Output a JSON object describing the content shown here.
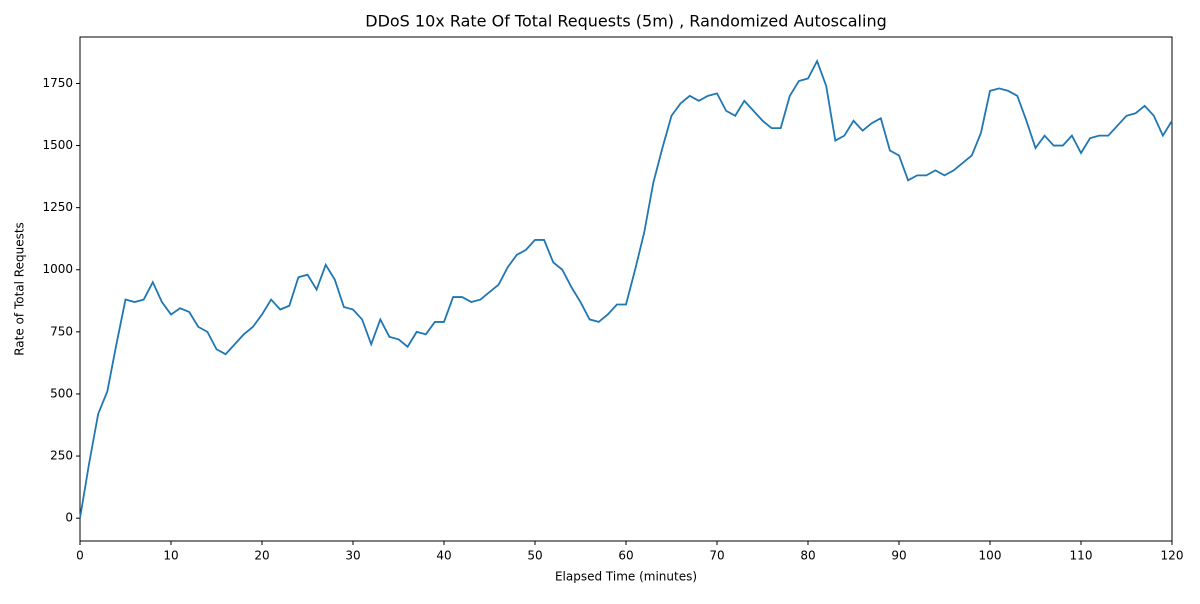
{
  "chart_data": {
    "type": "line",
    "title": "DDoS 10x Rate Of Total Requests (5m) , Randomized Autoscaling",
    "xlabel": "Elapsed Time (minutes)",
    "ylabel": "Rate of Total Requests",
    "x": [
      0,
      1,
      2,
      3,
      4,
      5,
      6,
      7,
      8,
      9,
      10,
      11,
      12,
      13,
      14,
      15,
      16,
      17,
      18,
      19,
      20,
      21,
      22,
      23,
      24,
      25,
      26,
      27,
      28,
      29,
      30,
      31,
      32,
      33,
      34,
      35,
      36,
      37,
      38,
      39,
      40,
      41,
      42,
      43,
      44,
      45,
      46,
      47,
      48,
      49,
      50,
      51,
      52,
      53,
      54,
      55,
      56,
      57,
      58,
      59,
      60,
      61,
      62,
      63,
      64,
      65,
      66,
      67,
      68,
      69,
      70,
      71,
      72,
      73,
      74,
      75,
      76,
      77,
      78,
      79,
      80,
      81,
      82,
      83,
      84,
      85,
      86,
      87,
      88,
      89,
      90,
      91,
      92,
      93,
      94,
      95,
      96,
      97,
      98,
      99,
      100,
      101,
      102,
      103,
      104,
      105,
      106,
      107,
      108,
      109,
      110,
      111,
      112,
      113,
      114,
      115,
      116,
      117,
      118,
      119,
      120
    ],
    "series": [
      {
        "name": "Rate of Total Requests",
        "color": "#1f77b4",
        "values": [
          0,
          220,
          420,
          510,
          700,
          880,
          870,
          880,
          950,
          870,
          820,
          845,
          830,
          770,
          750,
          680,
          660,
          700,
          740,
          770,
          820,
          880,
          840,
          855,
          970,
          980,
          920,
          1020,
          960,
          850,
          840,
          800,
          700,
          800,
          730,
          720,
          690,
          750,
          740,
          790,
          790,
          890,
          890,
          870,
          880,
          910,
          940,
          1010,
          1060,
          1080,
          1120,
          1120,
          1030,
          1000,
          930,
          870,
          800,
          790,
          820,
          860,
          860,
          1000,
          1150,
          1350,
          1490,
          1620,
          1670,
          1700,
          1680,
          1700,
          1710,
          1640,
          1620,
          1680,
          1640,
          1600,
          1570,
          1570,
          1700,
          1760,
          1770,
          1840,
          1740,
          1520,
          1540,
          1600,
          1560,
          1590,
          1610,
          1480,
          1460,
          1360,
          1380,
          1380,
          1400,
          1380,
          1400,
          1430,
          1460,
          1550,
          1720,
          1730,
          1720,
          1700,
          1600,
          1490,
          1540,
          1500,
          1500,
          1540,
          1470,
          1530,
          1540,
          1540,
          1580,
          1620,
          1630,
          1660,
          1620,
          1540,
          1600
        ]
      }
    ],
    "xlim": [
      0,
      120
    ],
    "xticks": [
      0,
      10,
      20,
      30,
      40,
      50,
      60,
      70,
      80,
      90,
      100,
      110,
      120
    ],
    "ylim": [
      -92,
      1937
    ],
    "yticks": [
      0,
      250,
      500,
      750,
      1000,
      1250,
      1500,
      1750
    ]
  }
}
